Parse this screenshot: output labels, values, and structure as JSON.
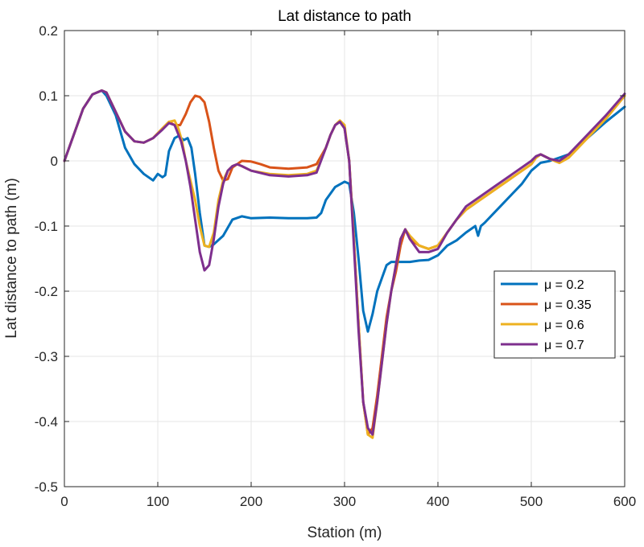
{
  "chart_data": {
    "type": "line",
    "title": "Lat distance to path",
    "xlabel": "Station (m)",
    "ylabel": "Lat distance to path (m)",
    "xlim": [
      0,
      600
    ],
    "ylim": [
      -0.5,
      0.2
    ],
    "xticks": [
      0,
      100,
      200,
      300,
      400,
      500,
      600
    ],
    "yticks": [
      -0.5,
      -0.4,
      -0.3,
      -0.2,
      -0.1,
      0,
      0.1,
      0.2
    ],
    "ytick_labels": [
      "-0.5",
      "-0.4",
      "-0.3",
      "-0.2",
      "-0.1",
      "0",
      "0.1",
      "0.2"
    ],
    "xtick_labels": [
      "0",
      "100",
      "200",
      "300",
      "400",
      "500",
      "600"
    ],
    "grid": true,
    "legend_position": "right",
    "series": [
      {
        "name": "μ = 0.2",
        "color": "#0072BD",
        "x": [
          0,
          10,
          20,
          30,
          40,
          45,
          55,
          65,
          75,
          85,
          95,
          100,
          105,
          108,
          112,
          118,
          122,
          128,
          132,
          136,
          140,
          145,
          150,
          155,
          160,
          170,
          180,
          190,
          200,
          220,
          240,
          260,
          270,
          275,
          280,
          290,
          300,
          305,
          310,
          315,
          320,
          325,
          330,
          335,
          340,
          345,
          350,
          360,
          370,
          380,
          390,
          400,
          410,
          420,
          430,
          440,
          443,
          446,
          450,
          460,
          470,
          480,
          490,
          500,
          510,
          520,
          530,
          540,
          560,
          580,
          600
        ],
        "y": [
          0,
          0.04,
          0.08,
          0.102,
          0.108,
          0.1,
          0.07,
          0.02,
          -0.005,
          -0.02,
          -0.03,
          -0.02,
          -0.025,
          -0.022,
          0.015,
          0.035,
          0.038,
          0.032,
          0.035,
          0.02,
          -0.02,
          -0.08,
          -0.13,
          -0.132,
          -0.128,
          -0.115,
          -0.09,
          -0.085,
          -0.088,
          -0.087,
          -0.088,
          -0.088,
          -0.087,
          -0.08,
          -0.06,
          -0.04,
          -0.032,
          -0.035,
          -0.08,
          -0.15,
          -0.23,
          -0.262,
          -0.235,
          -0.2,
          -0.18,
          -0.16,
          -0.155,
          -0.155,
          -0.155,
          -0.153,
          -0.152,
          -0.145,
          -0.13,
          -0.122,
          -0.11,
          -0.1,
          -0.115,
          -0.1,
          -0.095,
          -0.08,
          -0.065,
          -0.05,
          -0.035,
          -0.015,
          -0.003,
          0,
          0.005,
          0.01,
          0.035,
          0.06,
          0.083
        ]
      },
      {
        "name": "μ = 0.35",
        "color": "#D95319",
        "x": [
          0,
          10,
          20,
          30,
          40,
          45,
          55,
          65,
          75,
          85,
          95,
          105,
          112,
          118,
          124,
          130,
          135,
          140,
          145,
          150,
          155,
          160,
          165,
          170,
          175,
          180,
          185,
          190,
          200,
          210,
          220,
          240,
          260,
          270,
          280,
          285,
          290,
          295,
          300,
          305,
          310,
          315,
          320,
          325,
          330,
          335,
          340,
          345,
          350,
          355,
          360,
          365,
          370,
          380,
          390,
          400,
          410,
          420,
          430,
          440,
          460,
          480,
          500,
          505,
          510,
          520,
          530,
          540,
          560,
          580,
          600
        ],
        "y": [
          0,
          0.04,
          0.08,
          0.102,
          0.108,
          0.105,
          0.075,
          0.045,
          0.03,
          0.028,
          0.035,
          0.05,
          0.06,
          0.055,
          0.055,
          0.072,
          0.09,
          0.1,
          0.098,
          0.09,
          0.06,
          0.02,
          -0.015,
          -0.03,
          -0.028,
          -0.01,
          -0.005,
          0,
          -0.001,
          -0.005,
          -0.01,
          -0.012,
          -0.01,
          -0.005,
          0.02,
          0.04,
          0.055,
          0.06,
          0.05,
          0.0,
          -0.12,
          -0.25,
          -0.37,
          -0.42,
          -0.41,
          -0.36,
          -0.3,
          -0.24,
          -0.2,
          -0.17,
          -0.13,
          -0.105,
          -0.12,
          -0.13,
          -0.135,
          -0.13,
          -0.11,
          -0.09,
          -0.075,
          -0.065,
          -0.045,
          -0.025,
          -0.005,
          0.005,
          0.01,
          0.003,
          -0.003,
          0.005,
          0.035,
          0.065,
          0.1
        ]
      },
      {
        "name": "μ = 0.6",
        "color": "#EDB120",
        "x": [
          0,
          10,
          20,
          30,
          40,
          45,
          55,
          65,
          75,
          85,
          95,
          105,
          112,
          118,
          122,
          126,
          130,
          135,
          140,
          145,
          150,
          155,
          160,
          165,
          170,
          175,
          180,
          185,
          190,
          200,
          220,
          240,
          260,
          270,
          280,
          285,
          290,
          295,
          300,
          305,
          310,
          315,
          320,
          325,
          330,
          335,
          340,
          345,
          350,
          355,
          360,
          365,
          370,
          380,
          390,
          400,
          410,
          420,
          430,
          440,
          460,
          480,
          500,
          505,
          510,
          520,
          530,
          540,
          560,
          580,
          600
        ],
        "y": [
          0,
          0.04,
          0.08,
          0.102,
          0.108,
          0.105,
          0.075,
          0.045,
          0.03,
          0.028,
          0.035,
          0.05,
          0.06,
          0.062,
          0.05,
          0.03,
          0.0,
          -0.03,
          -0.06,
          -0.1,
          -0.13,
          -0.132,
          -0.11,
          -0.06,
          -0.03,
          -0.015,
          -0.008,
          -0.005,
          -0.008,
          -0.015,
          -0.02,
          -0.022,
          -0.02,
          -0.015,
          0.02,
          0.04,
          0.055,
          0.062,
          0.055,
          0.0,
          -0.12,
          -0.25,
          -0.37,
          -0.42,
          -0.425,
          -0.37,
          -0.31,
          -0.25,
          -0.2,
          -0.16,
          -0.12,
          -0.105,
          -0.115,
          -0.13,
          -0.135,
          -0.13,
          -0.11,
          -0.09,
          -0.075,
          -0.065,
          -0.045,
          -0.025,
          -0.005,
          0.005,
          0.01,
          0.003,
          -0.003,
          0.005,
          0.035,
          0.065,
          0.1
        ]
      },
      {
        "name": "μ = 0.7",
        "color": "#7E2F8E",
        "x": [
          0,
          10,
          20,
          30,
          40,
          45,
          55,
          65,
          75,
          85,
          95,
          105,
          112,
          118,
          125,
          130,
          135,
          140,
          145,
          150,
          155,
          160,
          165,
          170,
          175,
          180,
          185,
          190,
          200,
          220,
          240,
          260,
          270,
          280,
          285,
          290,
          295,
          300,
          305,
          310,
          315,
          320,
          325,
          330,
          335,
          340,
          345,
          350,
          355,
          360,
          365,
          370,
          380,
          390,
          400,
          410,
          420,
          430,
          440,
          460,
          480,
          500,
          505,
          510,
          520,
          530,
          540,
          560,
          580,
          600
        ],
        "y": [
          0,
          0.04,
          0.08,
          0.102,
          0.108,
          0.105,
          0.075,
          0.045,
          0.03,
          0.028,
          0.035,
          0.048,
          0.058,
          0.055,
          0.03,
          0.0,
          -0.04,
          -0.09,
          -0.14,
          -0.168,
          -0.16,
          -0.12,
          -0.07,
          -0.035,
          -0.015,
          -0.008,
          -0.005,
          -0.008,
          -0.015,
          -0.022,
          -0.024,
          -0.022,
          -0.018,
          0.02,
          0.04,
          0.055,
          0.06,
          0.05,
          0.0,
          -0.13,
          -0.26,
          -0.37,
          -0.41,
          -0.42,
          -0.37,
          -0.31,
          -0.25,
          -0.2,
          -0.16,
          -0.12,
          -0.105,
          -0.12,
          -0.14,
          -0.14,
          -0.135,
          -0.11,
          -0.09,
          -0.07,
          -0.06,
          -0.04,
          -0.02,
          0.0,
          0.007,
          0.01,
          0.003,
          0.0,
          0.01,
          0.04,
          0.07,
          0.103
        ]
      }
    ]
  }
}
